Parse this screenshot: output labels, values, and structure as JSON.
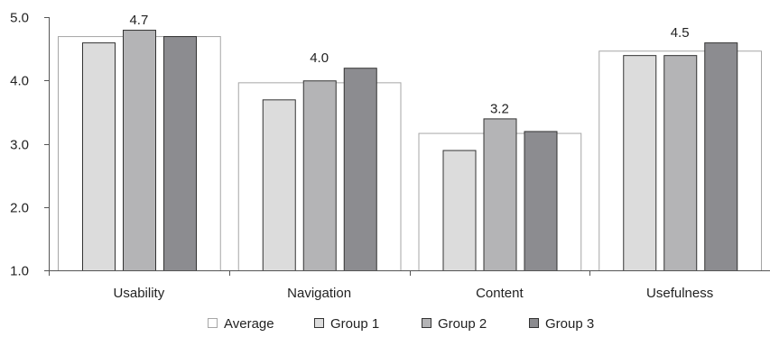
{
  "chart_data": {
    "type": "bar",
    "categories": [
      "Usability",
      "Navigation",
      "Content",
      "Usefulness"
    ],
    "average": {
      "name": "Average",
      "values": [
        4.7,
        3.97,
        3.17,
        4.47
      ],
      "labels": [
        "4.7",
        "4.0",
        "3.2",
        "4.5"
      ],
      "color": "#ffffff",
      "stroke": "#a6a6a6"
    },
    "series": [
      {
        "name": "Group 1",
        "values": [
          4.6,
          3.7,
          2.9,
          4.4
        ],
        "color": "#dcdcdc"
      },
      {
        "name": "Group 2",
        "values": [
          4.8,
          4.0,
          3.4,
          4.4
        ],
        "color": "#b4b4b6"
      },
      {
        "name": "Group 3",
        "values": [
          4.7,
          4.2,
          3.2,
          4.6
        ],
        "color": "#8c8c90"
      }
    ],
    "y_ticks": [
      "1.0",
      "2.0",
      "3.0",
      "4.0",
      "5.0"
    ],
    "ylim": [
      1.0,
      5.0
    ],
    "xlabel": "",
    "ylabel": "",
    "title": "",
    "grid": false,
    "legend_position": "bottom"
  }
}
